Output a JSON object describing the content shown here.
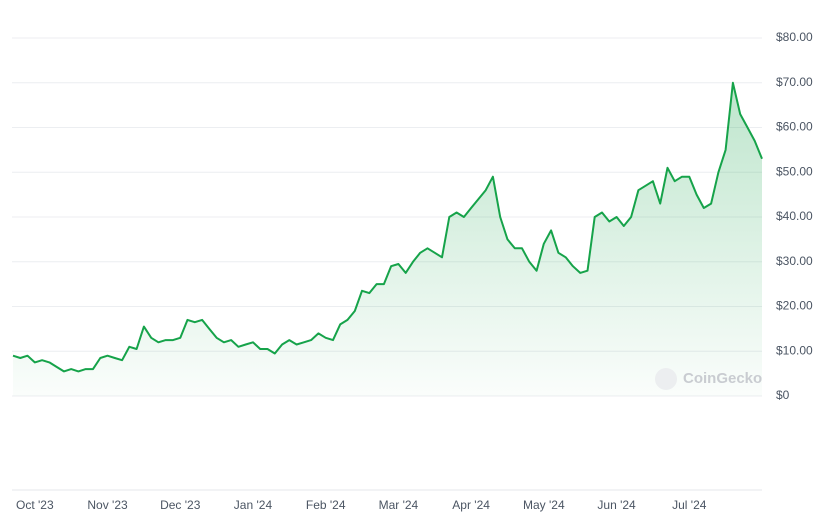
{
  "chart_data": {
    "type": "line",
    "color": "#16a34a",
    "grid": true,
    "watermark": "CoinGecko",
    "categories": [
      null,
      null,
      null,
      "Oct '23",
      null,
      null,
      null,
      null,
      null,
      null,
      null,
      null,
      null,
      "Nov '23",
      null,
      null,
      null,
      null,
      null,
      null,
      null,
      null,
      null,
      "Dec '23",
      null,
      null,
      null,
      null,
      null,
      null,
      null,
      null,
      null,
      "Jan '24",
      null,
      null,
      null,
      null,
      null,
      null,
      null,
      null,
      null,
      "Feb '24",
      null,
      null,
      null,
      null,
      null,
      null,
      null,
      null,
      null,
      "Mar '24",
      null,
      null,
      null,
      null,
      null,
      null,
      null,
      null,
      null,
      "Apr '24",
      null,
      null,
      null,
      null,
      null,
      null,
      null,
      null,
      null,
      "May '24",
      null,
      null,
      null,
      null,
      null,
      null,
      null,
      null,
      null,
      "Jun '24",
      null,
      null,
      null,
      null,
      null,
      null,
      null,
      null,
      null,
      "Jul '24",
      null,
      null,
      null,
      null,
      null,
      null,
      null,
      null,
      null,
      null
    ],
    "values": [
      9,
      8.5,
      9,
      7.5,
      8,
      7.5,
      6.5,
      5.5,
      6,
      5.5,
      6,
      6,
      8.5,
      9,
      8.5,
      8,
      11,
      10.5,
      15.5,
      13,
      12,
      12.5,
      12.5,
      13,
      17,
      16.5,
      17,
      15,
      13,
      12,
      12.5,
      11,
      11.5,
      12,
      10.5,
      10.5,
      9.5,
      11.5,
      12.5,
      11.5,
      12,
      12.5,
      14,
      13,
      12.5,
      16,
      17,
      19,
      23.5,
      23,
      25,
      25,
      29,
      29.5,
      27.5,
      30,
      32,
      33,
      32,
      31,
      40,
      41,
      40,
      42,
      44,
      46,
      49,
      40,
      35,
      33,
      33,
      30,
      28,
      34,
      37,
      32,
      31,
      29,
      27.5,
      28,
      40,
      41,
      39,
      40,
      38,
      40,
      46,
      47,
      48,
      43,
      51,
      48,
      49,
      49,
      45,
      42,
      43,
      50,
      55,
      70,
      63,
      60,
      57,
      53
    ],
    "ylim": [
      0,
      80
    ],
    "yticks": [
      {
        "value": 0,
        "label": "$0"
      },
      {
        "value": 10,
        "label": "$10.00"
      },
      {
        "value": 20,
        "label": "$20.00"
      },
      {
        "value": 30,
        "label": "$30.00"
      },
      {
        "value": 40,
        "label": "$40.00"
      },
      {
        "value": 50,
        "label": "$50.00"
      },
      {
        "value": 60,
        "label": "$60.00"
      },
      {
        "value": 70,
        "label": "$70.00"
      },
      {
        "value": 80,
        "label": "$80.00"
      }
    ]
  }
}
